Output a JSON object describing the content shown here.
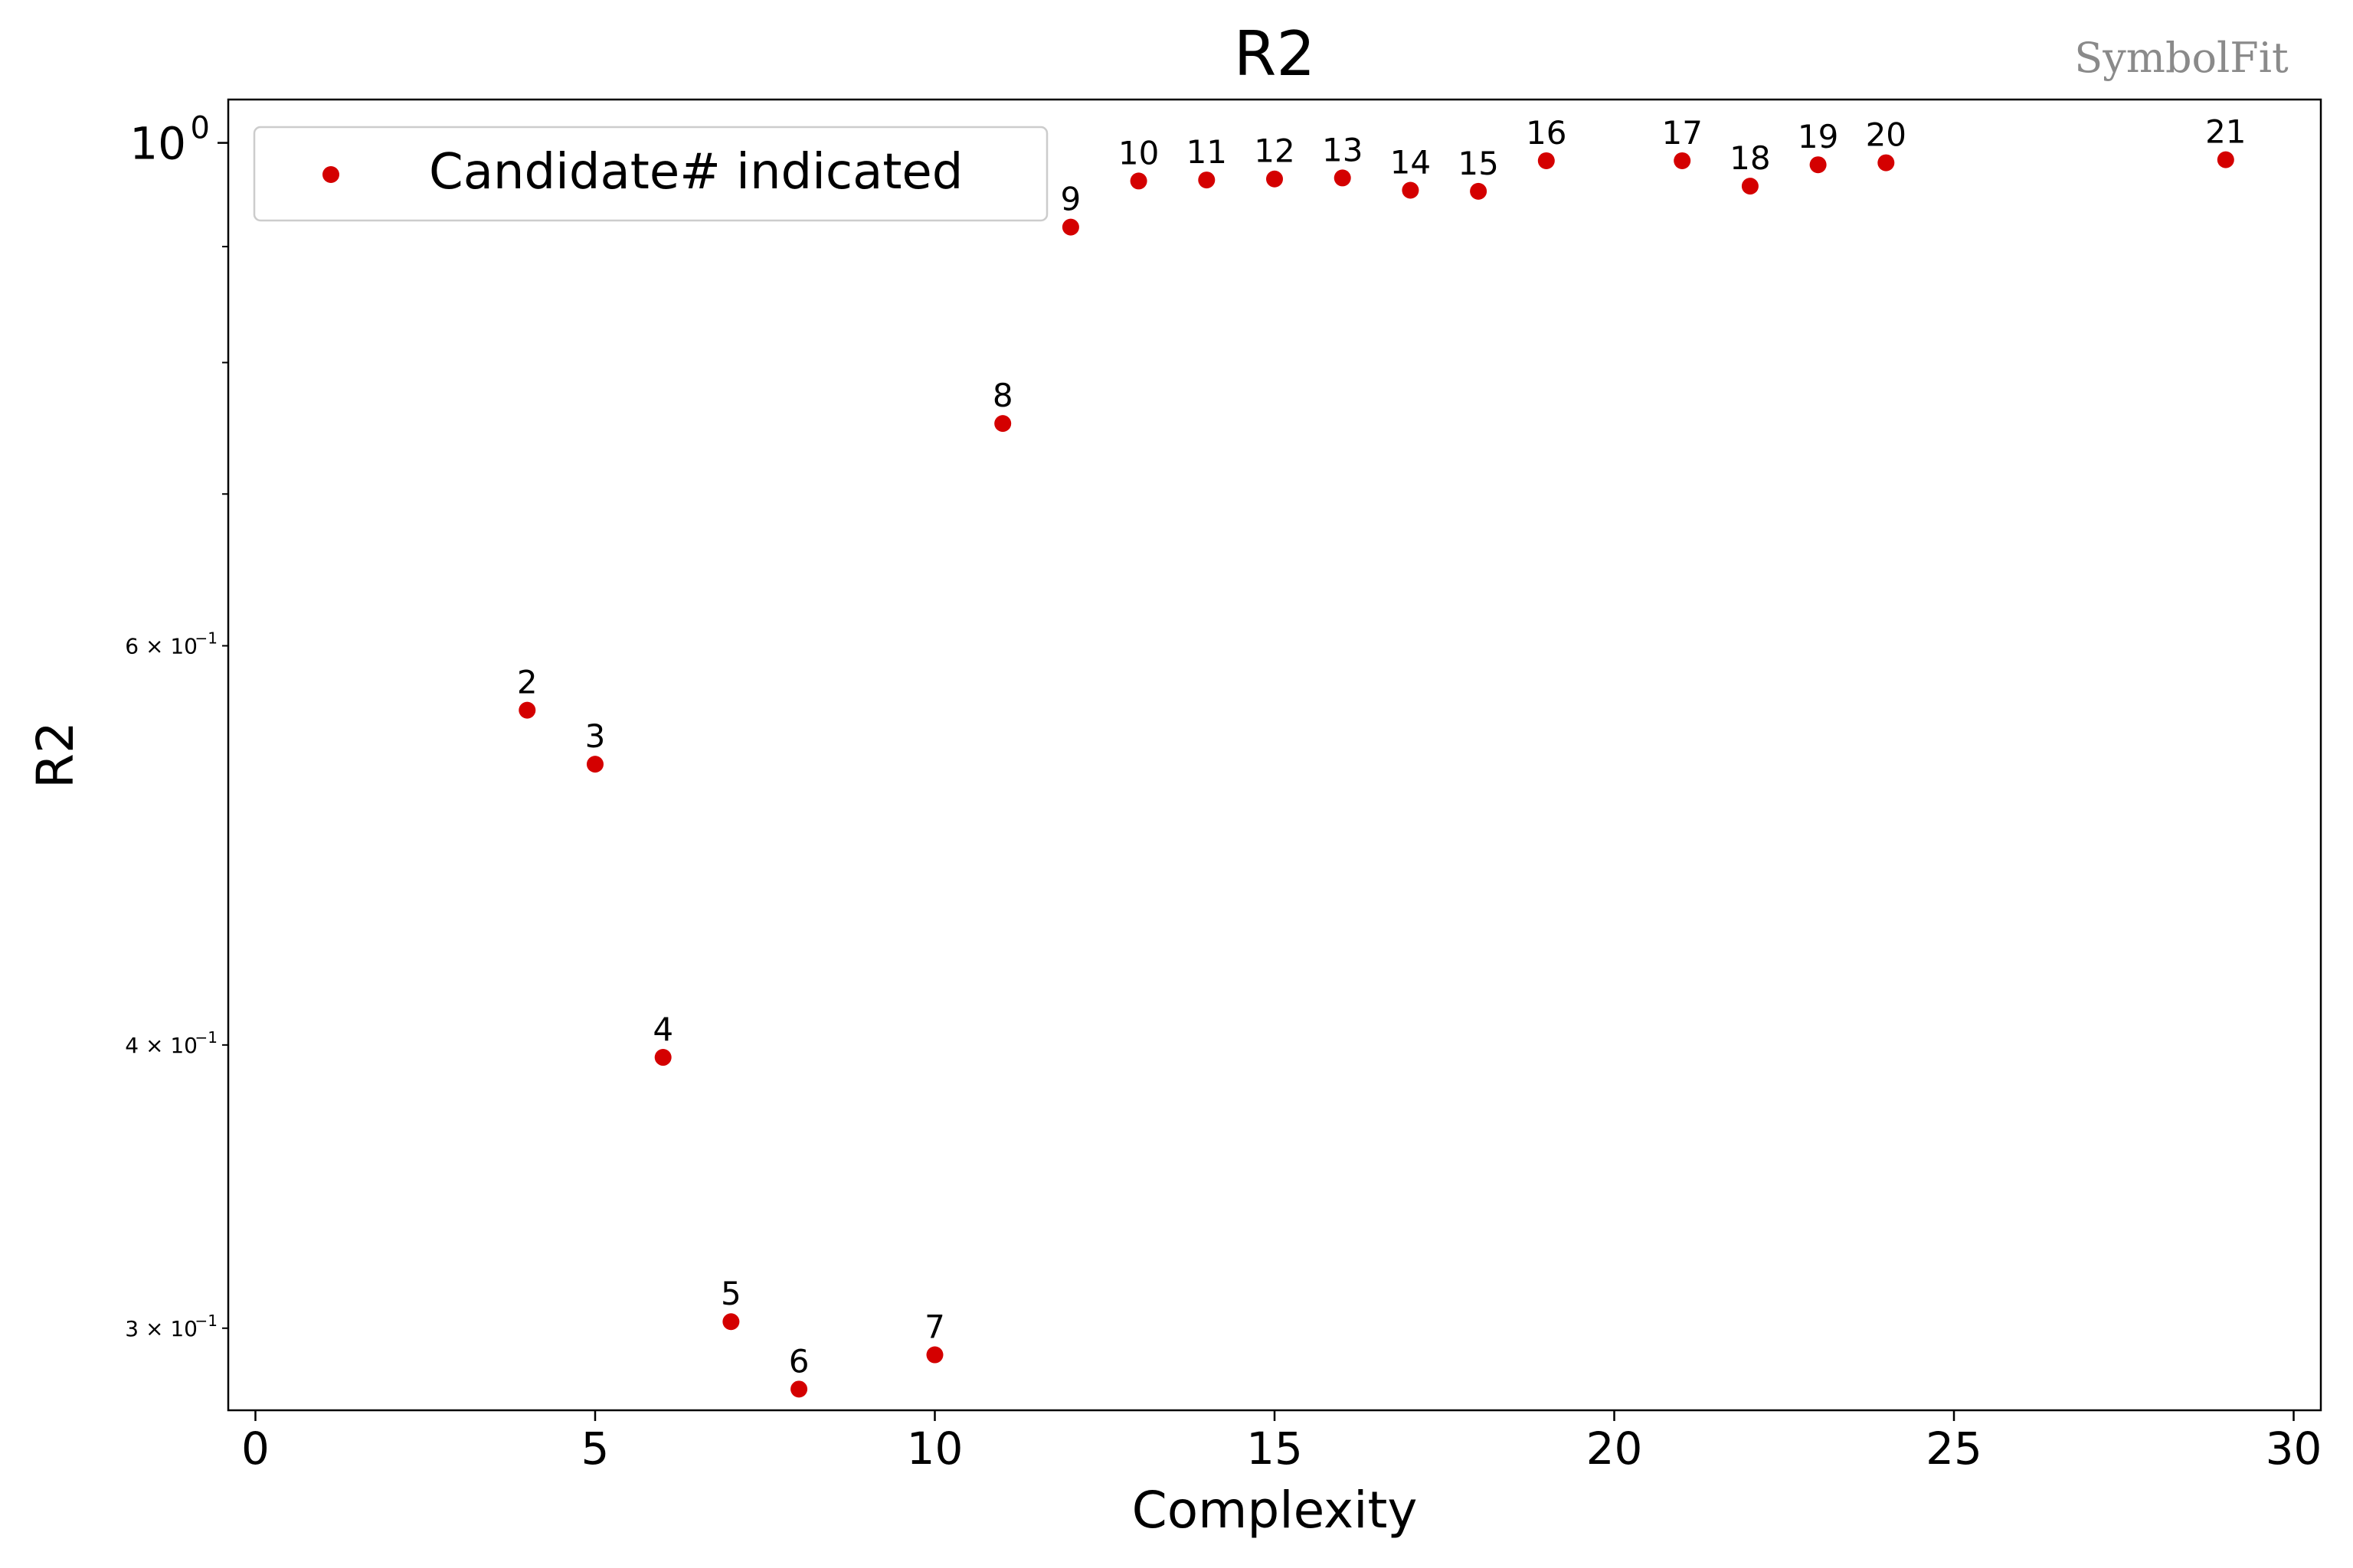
{
  "watermark": "SymbolFit",
  "chart_data": {
    "type": "scatter",
    "title": "R2",
    "xlabel": "Complexity",
    "ylabel": "R2",
    "yscale": "log",
    "xlim": [
      -0.4,
      30.4
    ],
    "ylim": [
      0.276,
      1.045
    ],
    "xticks": [
      0,
      5,
      10,
      15,
      20,
      25,
      30
    ],
    "yticks_major": [
      {
        "value": 1.0,
        "base": "10",
        "exp": "0"
      }
    ],
    "yticks_labeled_minor": [
      {
        "value": 0.6,
        "mant": "6",
        "base": "10",
        "exp": "−1"
      },
      {
        "value": 0.4,
        "mant": "4",
        "base": "10",
        "exp": "−1"
      },
      {
        "value": 0.3,
        "mant": "3",
        "base": "10",
        "exp": "−1"
      }
    ],
    "yticks_minor_unlabeled": [
      0.7,
      0.8,
      0.9
    ],
    "grid": false,
    "legend": {
      "label": "Candidate# indicated",
      "position": "top-left"
    },
    "marker_color": "#d40000",
    "points": [
      {
        "x": 4,
        "y": 0.562,
        "label": "2"
      },
      {
        "x": 5,
        "y": 0.532,
        "label": "3"
      },
      {
        "x": 6,
        "y": 0.395,
        "label": "4"
      },
      {
        "x": 7,
        "y": 0.302,
        "label": "5"
      },
      {
        "x": 8,
        "y": 0.282,
        "label": "6"
      },
      {
        "x": 10,
        "y": 0.292,
        "label": "7"
      },
      {
        "x": 11,
        "y": 0.752,
        "label": "8"
      },
      {
        "x": 12,
        "y": 0.918,
        "label": "9"
      },
      {
        "x": 13,
        "y": 0.962,
        "label": "10"
      },
      {
        "x": 14,
        "y": 0.963,
        "label": "11"
      },
      {
        "x": 15,
        "y": 0.964,
        "label": "12"
      },
      {
        "x": 16,
        "y": 0.965,
        "label": "13"
      },
      {
        "x": 17,
        "y": 0.953,
        "label": "14"
      },
      {
        "x": 18,
        "y": 0.952,
        "label": "15"
      },
      {
        "x": 19,
        "y": 0.982,
        "label": "16"
      },
      {
        "x": 21,
        "y": 0.982,
        "label": "17"
      },
      {
        "x": 22,
        "y": 0.957,
        "label": "18"
      },
      {
        "x": 23,
        "y": 0.978,
        "label": "19"
      },
      {
        "x": 24,
        "y": 0.98,
        "label": "20"
      },
      {
        "x": 29,
        "y": 0.983,
        "label": "21"
      }
    ]
  }
}
